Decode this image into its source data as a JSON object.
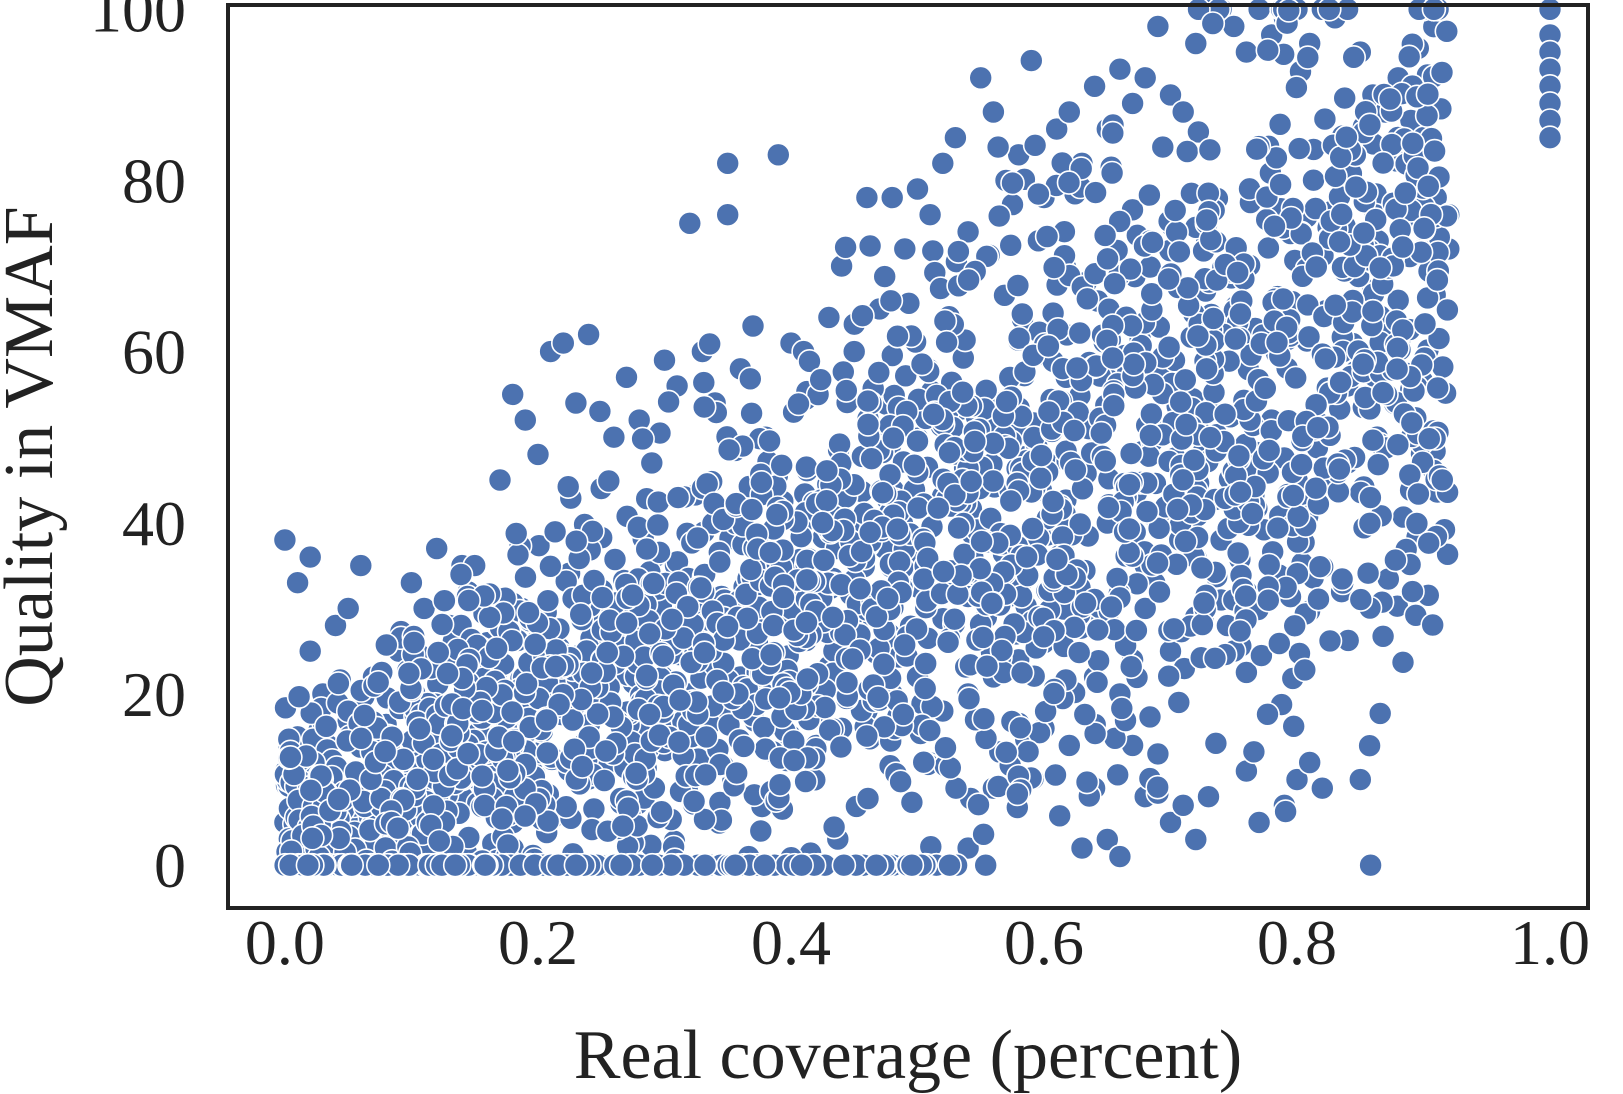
{
  "chart_data": {
    "type": "scatter",
    "title": "",
    "xlabel": "Real coverage (percent)",
    "ylabel": "Quality in VMAF",
    "xlim": [
      -0.045,
      1.03
    ],
    "ylim": [
      -5,
      100.5
    ],
    "xticks": [
      0.0,
      0.2,
      0.4,
      0.6,
      0.8,
      1.0
    ],
    "xtick_labels": [
      "0.0",
      "0.2",
      "0.4",
      "0.6",
      "0.8",
      "1.0"
    ],
    "yticks": [
      0,
      20,
      40,
      60,
      80,
      100
    ],
    "ytick_labels": [
      "0",
      "20",
      "40",
      "60",
      "80",
      "100"
    ],
    "grid": false,
    "marker_color": "#4c72b0",
    "series": [
      {
        "points": [
          [
            0.0,
            38
          ],
          [
            0.01,
            33
          ],
          [
            0.02,
            36
          ],
          [
            0.02,
            25
          ],
          [
            0.01,
            15
          ],
          [
            0.0,
            5
          ],
          [
            0.01,
            0
          ],
          [
            0.02,
            10
          ],
          [
            0.03,
            20
          ],
          [
            0.04,
            28
          ],
          [
            0.05,
            30
          ],
          [
            0.06,
            35
          ],
          [
            0.07,
            22
          ],
          [
            0.08,
            14
          ],
          [
            0.09,
            25
          ],
          [
            0.1,
            33
          ],
          [
            0.11,
            30
          ],
          [
            0.12,
            37
          ],
          [
            0.13,
            28
          ],
          [
            0.14,
            35
          ],
          [
            0.15,
            35
          ],
          [
            0.16,
            26
          ],
          [
            0.17,
            45
          ],
          [
            0.18,
            55
          ],
          [
            0.19,
            52
          ],
          [
            0.2,
            48
          ],
          [
            0.21,
            60
          ],
          [
            0.22,
            61
          ],
          [
            0.24,
            62
          ],
          [
            0.23,
            54
          ],
          [
            0.25,
            44
          ],
          [
            0.26,
            50
          ],
          [
            0.27,
            57
          ],
          [
            0.28,
            52
          ],
          [
            0.29,
            47
          ],
          [
            0.3,
            59
          ],
          [
            0.31,
            56
          ],
          [
            0.32,
            75
          ],
          [
            0.33,
            60
          ],
          [
            0.34,
            54
          ],
          [
            0.35,
            82
          ],
          [
            0.35,
            76
          ],
          [
            0.36,
            58
          ],
          [
            0.37,
            63
          ],
          [
            0.38,
            50
          ],
          [
            0.39,
            83
          ],
          [
            0.4,
            61
          ],
          [
            0.41,
            60
          ],
          [
            0.43,
            64
          ],
          [
            0.44,
            70
          ],
          [
            0.45,
            60
          ],
          [
            0.46,
            78
          ],
          [
            0.47,
            65
          ],
          [
            0.48,
            78
          ],
          [
            0.49,
            72
          ],
          [
            0.5,
            79
          ],
          [
            0.51,
            76
          ],
          [
            0.52,
            82
          ],
          [
            0.53,
            85
          ],
          [
            0.54,
            74
          ],
          [
            0.55,
            92
          ],
          [
            0.56,
            88
          ],
          [
            0.57,
            80
          ],
          [
            0.58,
            83
          ],
          [
            0.59,
            94
          ],
          [
            0.6,
            78
          ],
          [
            0.61,
            86
          ],
          [
            0.62,
            88
          ],
          [
            0.63,
            82
          ],
          [
            0.64,
            91
          ],
          [
            0.65,
            86
          ],
          [
            0.66,
            93
          ],
          [
            0.67,
            89
          ],
          [
            0.68,
            92
          ],
          [
            0.69,
            98
          ],
          [
            0.7,
            90
          ],
          [
            0.71,
            88
          ],
          [
            0.72,
            96
          ],
          [
            0.73,
            100
          ],
          [
            0.74,
            100
          ],
          [
            0.75,
            98
          ],
          [
            0.76,
            95
          ],
          [
            0.77,
            100
          ],
          [
            0.78,
            97
          ],
          [
            0.79,
            99
          ],
          [
            0.8,
            100
          ],
          [
            0.81,
            96
          ],
          [
            0.82,
            100
          ],
          [
            0.83,
            99
          ],
          [
            0.84,
            100
          ],
          [
            0.85,
            95
          ],
          [
            0.86,
            90
          ],
          [
            0.87,
            88
          ],
          [
            0.88,
            92
          ],
          [
            0.89,
            87
          ],
          [
            0.9,
            85
          ],
          [
            0.91,
            78
          ],
          [
            0.92,
            76
          ],
          [
            0.92,
            72
          ],
          [
            0.9,
            72
          ],
          [
            0.88,
            66
          ],
          [
            0.86,
            64
          ],
          [
            0.84,
            56
          ],
          [
            0.84,
            47
          ],
          [
            0.82,
            50
          ],
          [
            0.8,
            45
          ],
          [
            0.78,
            52
          ],
          [
            0.76,
            44
          ],
          [
            0.75,
            40
          ],
          [
            0.74,
            38
          ],
          [
            0.72,
            36
          ],
          [
            0.7,
            40
          ],
          [
            0.68,
            35
          ],
          [
            0.66,
            32
          ],
          [
            0.64,
            28
          ],
          [
            0.62,
            30
          ],
          [
            0.6,
            26
          ],
          [
            0.58,
            24
          ],
          [
            0.56,
            22
          ],
          [
            0.54,
            20
          ],
          [
            0.52,
            18
          ],
          [
            0.5,
            22
          ],
          [
            0.48,
            20
          ],
          [
            0.46,
            18
          ],
          [
            0.44,
            16
          ],
          [
            0.42,
            14
          ],
          [
            0.4,
            18
          ],
          [
            0.38,
            20
          ],
          [
            0.36,
            22
          ],
          [
            0.34,
            24
          ],
          [
            0.32,
            20
          ],
          [
            0.3,
            18
          ],
          [
            0.28,
            16
          ],
          [
            0.26,
            18
          ],
          [
            0.24,
            14
          ],
          [
            0.22,
            12
          ],
          [
            0.2,
            16
          ],
          [
            0.18,
            10
          ],
          [
            0.16,
            12
          ],
          [
            0.14,
            8
          ],
          [
            0.12,
            10
          ],
          [
            0.1,
            6
          ],
          [
            0.08,
            8
          ],
          [
            0.06,
            4
          ],
          [
            0.04,
            2
          ],
          [
            0.02,
            0
          ],
          [
            0.54,
            2
          ],
          [
            0.56,
            9
          ],
          [
            0.58,
            9
          ],
          [
            0.6,
            16
          ],
          [
            0.62,
            14
          ],
          [
            0.63,
            2
          ],
          [
            0.64,
            9
          ],
          [
            0.65,
            3
          ],
          [
            0.66,
            1
          ],
          [
            0.67,
            14
          ],
          [
            0.68,
            8
          ],
          [
            0.69,
            13
          ],
          [
            0.7,
            5
          ],
          [
            0.71,
            7
          ],
          [
            0.72,
            3
          ],
          [
            0.73,
            8
          ],
          [
            0.76,
            11
          ],
          [
            0.77,
            5
          ],
          [
            0.79,
            7
          ],
          [
            0.8,
            10
          ],
          [
            0.81,
            12
          ],
          [
            0.82,
            9
          ],
          [
            0.85,
            10
          ],
          [
            0.7,
            25
          ],
          [
            0.72,
            29
          ],
          [
            0.74,
            31
          ],
          [
            0.75,
            31
          ],
          [
            0.76,
            32
          ],
          [
            0.66,
            20
          ],
          [
            0.67,
            24
          ],
          [
            0.68,
            30
          ],
          [
            0.64,
            22
          ],
          [
            0.62,
            20
          ],
          [
            1.0,
            100
          ],
          [
            1.0,
            97
          ],
          [
            1.0,
            95
          ],
          [
            1.0,
            93
          ],
          [
            1.0,
            91
          ],
          [
            1.0,
            89
          ],
          [
            1.0,
            87
          ],
          [
            1.0,
            85
          ]
        ]
      }
    ]
  }
}
